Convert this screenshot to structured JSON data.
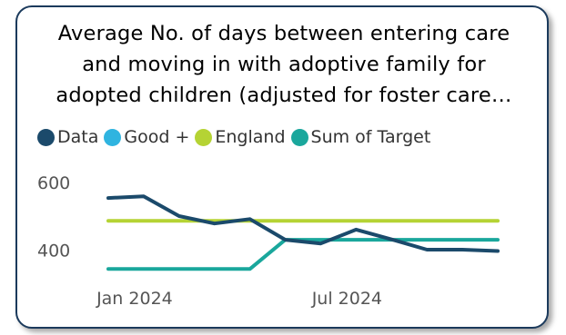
{
  "title_lines": [
    "Average No. of days between entering care",
    "and moving in with adoptive family for",
    "adopted children (adjusted for foster care…"
  ],
  "colors": {
    "border": "#1b3a5c",
    "data": "#1b4a6b",
    "good": "#2fb4e0",
    "england": "#b5d334",
    "target": "#1aa79c"
  },
  "chart_data": {
    "type": "line",
    "x": [
      "2023-12",
      "2024-01",
      "2024-02",
      "2024-03",
      "2024-04",
      "2024-05",
      "2024-06",
      "2024-07",
      "2024-08",
      "2024-09",
      "2024-10",
      "2024-11"
    ],
    "x_tick_labels": [
      {
        "label": "Jan 2024",
        "x": "2024-01"
      },
      {
        "label": "Jul 2024",
        "x": "2024-07"
      }
    ],
    "y_ticks": [
      400,
      600
    ],
    "y_tick_labels": [
      "400",
      "600"
    ],
    "ylim": [
      335,
      640
    ],
    "grid": false,
    "legend_position": "top-left",
    "series": [
      {
        "name": "Data",
        "color": "#1b4a6b",
        "values": [
          554,
          559,
          501,
          479,
          492,
          431,
          420,
          461,
          432,
          402,
          402,
          398
        ]
      },
      {
        "name": "Good +",
        "color": "#2fb4e0",
        "values": [
          null,
          null,
          null,
          null,
          null,
          null,
          null,
          null,
          null,
          null,
          null,
          null
        ]
      },
      {
        "name": "England",
        "color": "#b5d334",
        "values": [
          487,
          487,
          487,
          487,
          487,
          487,
          487,
          487,
          487,
          487,
          487,
          487
        ]
      },
      {
        "name": "Sum of Target",
        "color": "#1aa79c",
        "values": [
          345,
          345,
          345,
          345,
          345,
          431,
          431,
          431,
          431,
          431,
          431,
          431
        ]
      }
    ]
  }
}
